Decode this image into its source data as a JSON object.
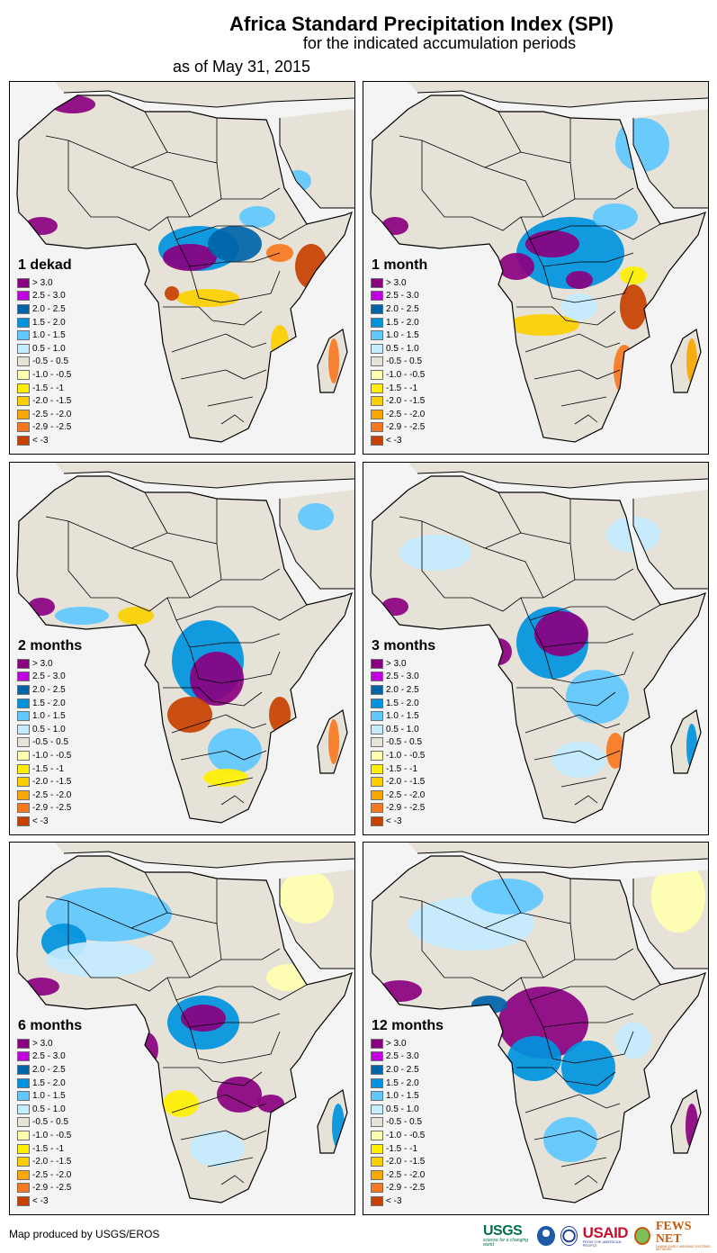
{
  "header": {
    "title": "Africa Standard Precipitation Index (SPI)",
    "subtitle": "for the indicated accumulation periods",
    "date_line": "as of May 31, 2015"
  },
  "legend": {
    "classes": [
      {
        "label": "> 3.0",
        "color": "#8b0080"
      },
      {
        "label": "2.5 - 3.0",
        "color": "#c000e0"
      },
      {
        "label": "2.0 - 2.5",
        "color": "#0064a8"
      },
      {
        "label": "1.5 - 2.0",
        "color": "#0094e0"
      },
      {
        "label": "1.0 - 1.5",
        "color": "#60c8ff"
      },
      {
        "label": "0.5 - 1.0",
        "color": "#c4ecff"
      },
      {
        "label": "-0.5 - 0.5",
        "color": "#e6e2d8"
      },
      {
        "label": "-1.0 - -0.5",
        "color": "#ffffb0"
      },
      {
        "label": "-1.5 - -1",
        "color": "#fff000"
      },
      {
        "label": "-2.0 - -1.5",
        "color": "#fcd000"
      },
      {
        "label": "-2.5 - -2.0",
        "color": "#f8a800"
      },
      {
        "label": "-2.9 - -2.5",
        "color": "#f87820"
      },
      {
        "label": "< -3",
        "color": "#c84000"
      }
    ]
  },
  "panels": [
    {
      "label": "1 dekad",
      "dominant_classes": [
        "-0.5 - 0.5",
        "2.0 - 2.5",
        "> 3.0",
        "< -3"
      ]
    },
    {
      "label": "1 month",
      "dominant_classes": [
        "-0.5 - 0.5",
        "1.5 - 2.0",
        "> 3.0",
        "-2.0 - -1.5"
      ]
    },
    {
      "label": "2 months",
      "dominant_classes": [
        "-0.5 - 0.5",
        "1.5 - 2.0",
        "> 3.0",
        "< -3"
      ]
    },
    {
      "label": "3 months",
      "dominant_classes": [
        "-0.5 - 0.5",
        "1.5 - 2.0",
        "> 3.0",
        "0.5 - 1.0"
      ]
    },
    {
      "label": "6 months",
      "dominant_classes": [
        "0.5 - 1.0",
        "1.5 - 2.0",
        "> 3.0",
        "-1.0 - -0.5"
      ]
    },
    {
      "label": "12 months",
      "dominant_classes": [
        "0.5 - 1.0",
        "1.5 - 2.0",
        "> 3.0",
        "-1.0 - -0.5"
      ]
    }
  ],
  "footer": {
    "credit": "Map produced by USGS/EROS",
    "logos": {
      "usgs": "USGS",
      "usgs_tagline": "science for a changing world",
      "usaid_prefix": "US",
      "usaid_suffix": "AID",
      "usaid_tagline": "FROM THE AMERICAN PEOPLE",
      "fews": "FEWS NET",
      "fews_tagline": "FAMINE EARLY WARNING SYSTEMS NETWORK"
    }
  }
}
